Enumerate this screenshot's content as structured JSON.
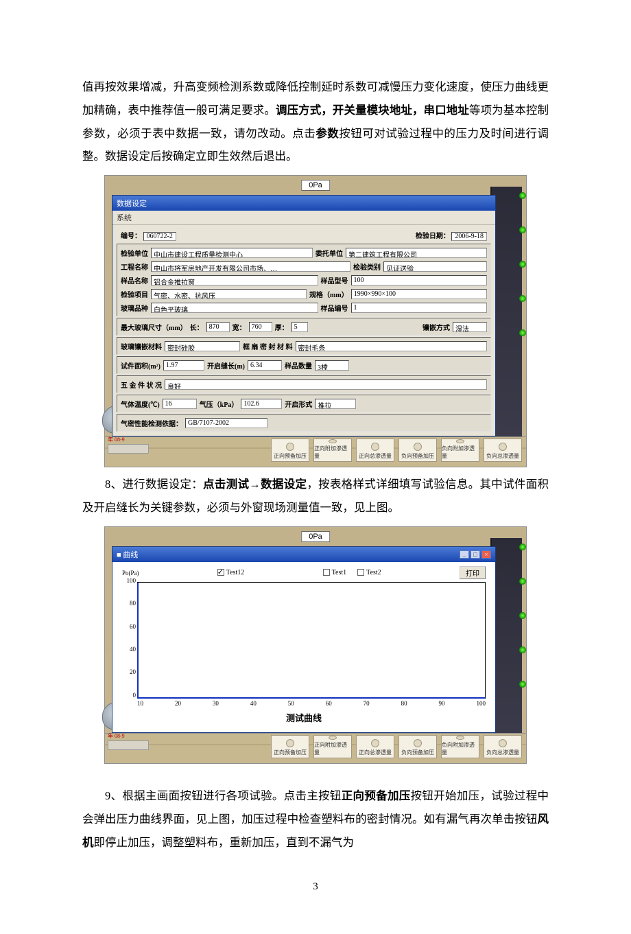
{
  "paragraphs": {
    "p1_pre": "值再按效果增减，升高变频检测系数或降低控制延时系数可减慢压力变化速度，使压力曲线更加精确，表中推荐值一般可满足要求。",
    "p1_bold1": "调压方式，开关量模块地址，串口地址",
    "p1_mid": "等项为基本控制参数，必须于表中数据一致，请勿改动。点击",
    "p1_bold2": "参数",
    "p1_post": "按钮可对试验过程中的压力及时间进行调整。数据设定后按确定立即生效然后退出。",
    "p8_num": "8、进行数据设定：",
    "p8_bold": "点击测试→数据设定",
    "p8_rest": "，按表格样式详细填写试验信息。其中试件面积及开启缝长为关键参数，必须与外窗现场测量值一致，见上图。",
    "p9_num": "9、根据主画面按钮进行各项试验。点击主按钮",
    "p9_bold1": "正向预备加压",
    "p9_mid": "按钮开始加压，试验过程中会弹出压力曲线界面，见上图，加压过程中检查塑料布的密封情况。如有漏气再次单击按钮",
    "p9_bold2": "风机",
    "p9_post": "即停止加压，调整塑料布，重新加压，直到不漏气为"
  },
  "pressure_badge": "0Pa",
  "form": {
    "title": "数据设定",
    "menu": "系统",
    "code_label": "编号：",
    "code_value": "060722-2",
    "date_label": "检验日期：",
    "date_value": "2006-9-18",
    "rows": [
      [
        [
          "检验单位",
          "中山市建设工程质量检测中心"
        ],
        [
          "委托单位",
          "第二建筑工程有限公司"
        ]
      ],
      [
        [
          "工程名称",
          "中山市将军房地产开发有限公司市场、…"
        ],
        [
          "检验类别",
          "见证送验"
        ]
      ],
      [
        [
          "样品名称",
          "铝合金推拉窗"
        ],
        [
          "样品型号",
          "100"
        ]
      ],
      [
        [
          "检验项目",
          "气密、水密、抗风压"
        ],
        [
          "规格（mm）",
          "1990×990×100"
        ]
      ],
      [
        [
          "玻璃品种",
          "白色平玻璃"
        ],
        [
          "样品编号",
          "1"
        ]
      ]
    ],
    "dims": {
      "label": "最大玻璃尺寸（mm）",
      "len_label": "长：",
      "len_val": "870",
      "wid_label": "宽：",
      "wid_val": "760",
      "thk_label": "厚：",
      "thk_val": "5",
      "embed_label": "镶嵌方式",
      "embed_val": "湿法"
    },
    "seal": {
      "glass_label": "玻璃镶嵌材料",
      "glass_val": "密封硅胶",
      "frame_label": "框 扇 密 封 材 料",
      "frame_val": "密封毛条"
    },
    "area": {
      "area_label": "试件面积(m²)",
      "area_val": "1.97",
      "gap_label": "开启缝长(m)",
      "gap_val": "6.34",
      "qty_label": "样品数量",
      "qty_val": "3樘"
    },
    "hw": {
      "label": "五 金 件 状 况",
      "val": "良好"
    },
    "env": {
      "temp_label": "气体温度(℃)",
      "temp_val": "16",
      "press_label": "气压（kPa）",
      "press_val": "102.6",
      "open_label": "开启形式",
      "open_val": "推拉"
    },
    "std": {
      "label": "气密性能检测依据：",
      "val": "GB/7107-2002"
    }
  },
  "floor_buttons": [
    "正向预备加压",
    "正向附加渗透量",
    "正向总渗透量",
    "负向预备加压",
    "负向附加渗透量",
    "负向总渗透量"
  ],
  "floor_left": "年 08-9",
  "chart": {
    "title": "曲线",
    "y_label": "Po(Pa)",
    "y_ticks": [
      "100",
      "80",
      "60",
      "40",
      "20",
      "0"
    ],
    "x_ticks": [
      "10",
      "20",
      "30",
      "40",
      "50",
      "60",
      "70",
      "80",
      "90",
      "100"
    ],
    "series_label": "Test12",
    "checks": [
      {
        "label": "Test1",
        "checked": false
      },
      {
        "label": "Test2",
        "checked": false
      }
    ],
    "print": "打印",
    "caption": "测试曲线",
    "line_color": "#1030c0",
    "axis_color": "#000000",
    "bg_color": "#ffffff"
  },
  "page_number": "3"
}
